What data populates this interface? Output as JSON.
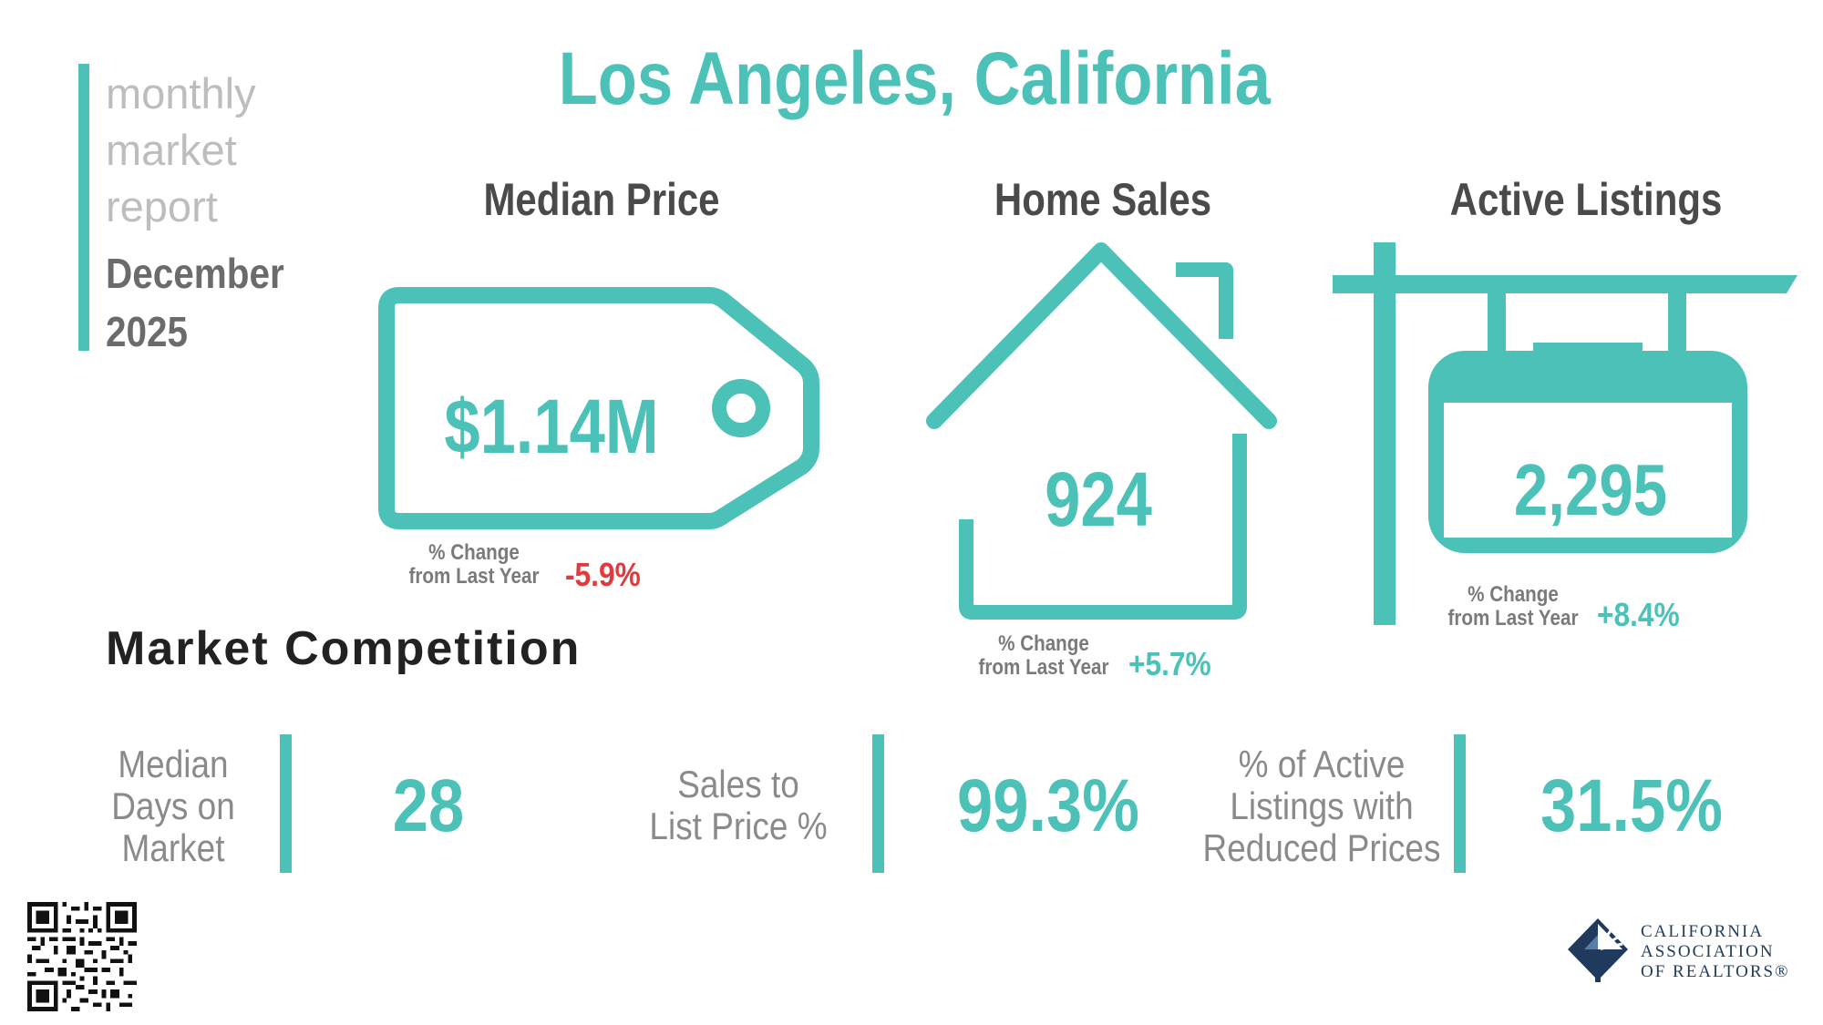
{
  "report": {
    "label_lines": [
      "monthly",
      "market",
      "report"
    ],
    "month": "December",
    "year": "2025"
  },
  "city": "Los Angeles, California",
  "metrics": {
    "median_price": {
      "title": "Median Price",
      "value": "$1.14M",
      "change_label_1": "% Change",
      "change_label_2": "from Last Year",
      "change": "-5.9%",
      "change_color": "#e0393e"
    },
    "home_sales": {
      "title": "Home Sales",
      "value": "924",
      "change_label_1": "% Change",
      "change_label_2": "from Last Year",
      "change": "+5.7%",
      "change_color": "#4cc1b8"
    },
    "active_listings": {
      "title": "Active Listings",
      "value": "2,295",
      "change_label_1": "% Change",
      "change_label_2": "from Last Year",
      "change": "+8.4%",
      "change_color": "#4cc1b8"
    }
  },
  "market_competition": {
    "title": "Market Competition",
    "days_on_market": {
      "label_lines": [
        "Median",
        "Days on",
        "Market"
      ],
      "value": "28"
    },
    "sales_to_list": {
      "label_lines": [
        "Sales to",
        "List Price %"
      ],
      "value": "99.3%"
    },
    "reduced_prices": {
      "label_lines": [
        "% of Active",
        "Listings with",
        "Reduced Prices"
      ],
      "value": "31.5%"
    }
  },
  "logo": {
    "lines": [
      "CALIFORNIA",
      "ASSOCIATION",
      "OF REALTORS®"
    ],
    "color": "#1f3a5c"
  },
  "colors": {
    "accent": "#4cc1b8",
    "negative": "#e0393e"
  }
}
